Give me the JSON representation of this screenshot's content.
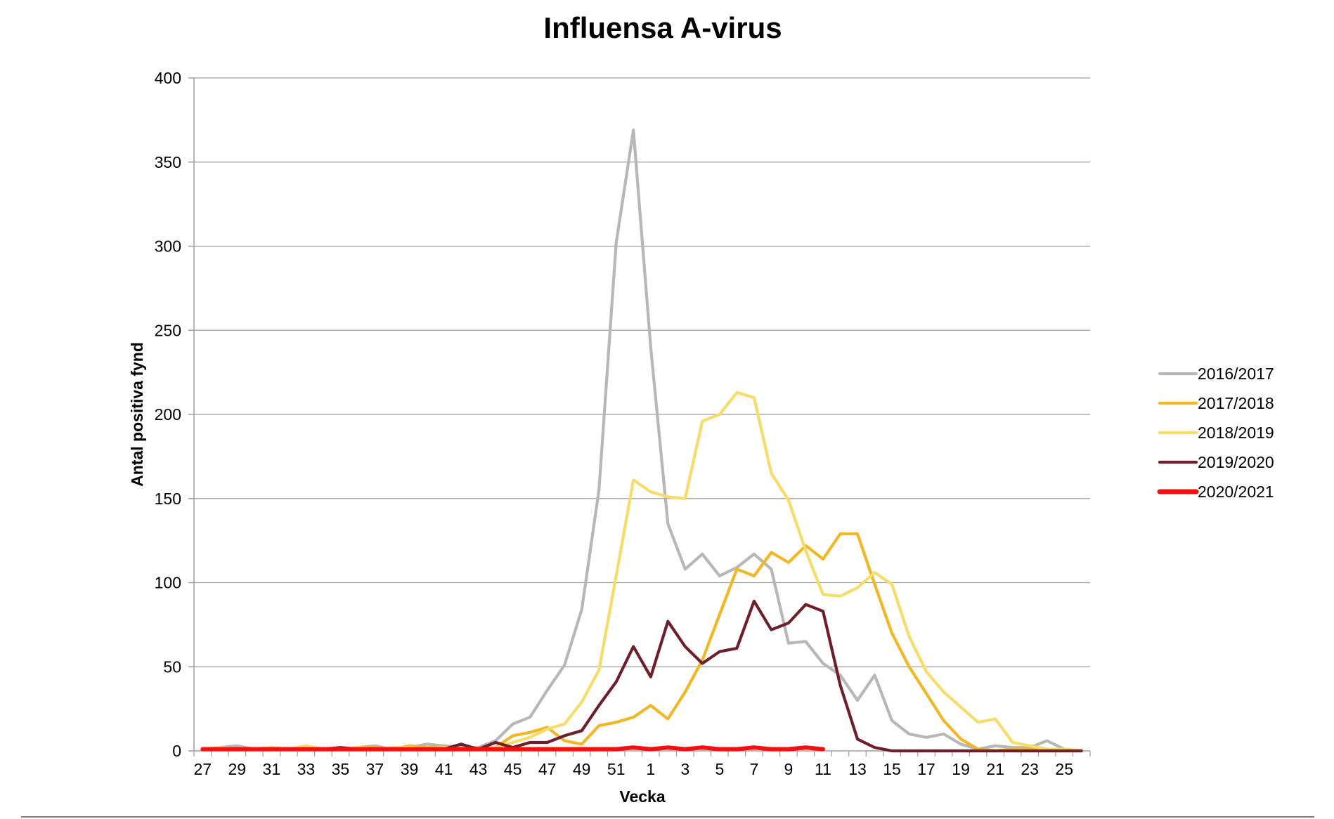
{
  "chart_data": {
    "type": "line",
    "title": "Influensa A-virus",
    "xlabel": "Vecka",
    "ylabel": "Antal positiva fynd",
    "ylim": [
      0,
      400
    ],
    "yticks": [
      0,
      50,
      100,
      150,
      200,
      250,
      300,
      350,
      400
    ],
    "grid": true,
    "legend_position": "right",
    "x_categories": [
      27,
      28,
      29,
      30,
      31,
      32,
      33,
      34,
      35,
      36,
      37,
      38,
      39,
      40,
      41,
      42,
      43,
      44,
      45,
      46,
      47,
      48,
      49,
      50,
      51,
      52,
      1,
      2,
      3,
      4,
      5,
      6,
      7,
      8,
      9,
      10,
      11,
      12,
      13,
      14,
      15,
      16,
      17,
      18,
      19,
      20,
      21,
      22,
      23,
      24,
      25,
      26
    ],
    "x_tick_labels": [
      "27",
      "29",
      "31",
      "33",
      "35",
      "37",
      "39",
      "41",
      "43",
      "45",
      "47",
      "49",
      "51",
      "1",
      "3",
      "5",
      "7",
      "9",
      "11",
      "13",
      "15",
      "17",
      "19",
      "21",
      "23",
      "25"
    ],
    "series": [
      {
        "name": "2016/2017",
        "color": "#b7b7b7",
        "values": [
          1,
          2,
          3,
          1,
          2,
          1,
          1,
          1,
          1,
          2,
          3,
          1,
          2,
          4,
          3,
          2,
          2,
          6,
          16,
          20,
          36,
          51,
          84,
          155,
          302,
          369,
          240,
          135,
          108,
          117,
          104,
          109,
          117,
          108,
          64,
          65,
          52,
          45,
          30,
          45,
          18,
          10,
          8,
          10,
          4,
          1,
          3,
          2,
          2,
          6,
          1,
          0
        ]
      },
      {
        "name": "2017/2018",
        "color": "#f2b824",
        "values": [
          1,
          2,
          1,
          1,
          2,
          1,
          1,
          1,
          1,
          2,
          2,
          1,
          3,
          2,
          2,
          1,
          1,
          2,
          9,
          11,
          14,
          6,
          4,
          15,
          17,
          20,
          27,
          19,
          35,
          54,
          81,
          108,
          104,
          118,
          112,
          122,
          114,
          129,
          129,
          99,
          70,
          50,
          34,
          18,
          7,
          1,
          0,
          1,
          1,
          1,
          1,
          0
        ]
      },
      {
        "name": "2018/2019",
        "color": "#f7dc6a",
        "values": [
          1,
          2,
          1,
          1,
          2,
          1,
          3,
          1,
          1,
          2,
          1,
          2,
          2,
          1,
          2,
          1,
          1,
          2,
          5,
          8,
          13,
          16,
          29,
          48,
          104,
          161,
          154,
          151,
          150,
          196,
          200,
          213,
          210,
          165,
          149,
          119,
          93,
          92,
          97,
          106,
          99,
          68,
          47,
          35,
          26,
          17,
          19,
          5,
          3,
          1,
          1,
          0
        ]
      },
      {
        "name": "2019/2020",
        "color": "#6d1f2b",
        "values": [
          1,
          1,
          1,
          1,
          1,
          1,
          1,
          1,
          2,
          1,
          1,
          1,
          1,
          1,
          1,
          4,
          1,
          5,
          2,
          5,
          5,
          9,
          12,
          27,
          41,
          62,
          44,
          77,
          62,
          52,
          59,
          61,
          89,
          72,
          76,
          87,
          83,
          39,
          7,
          2,
          0,
          0,
          0,
          0,
          0,
          0,
          0,
          0,
          0,
          0,
          0,
          0
        ]
      },
      {
        "name": "2020/2021",
        "color": "#f21010",
        "values": [
          1,
          1,
          1,
          1,
          1,
          1,
          1,
          1,
          1,
          1,
          1,
          1,
          1,
          1,
          1,
          1,
          1,
          1,
          1,
          1,
          1,
          1,
          1,
          1,
          1,
          2,
          1,
          2,
          1,
          2,
          1,
          1,
          2,
          1,
          1,
          2,
          1
        ]
      }
    ]
  }
}
